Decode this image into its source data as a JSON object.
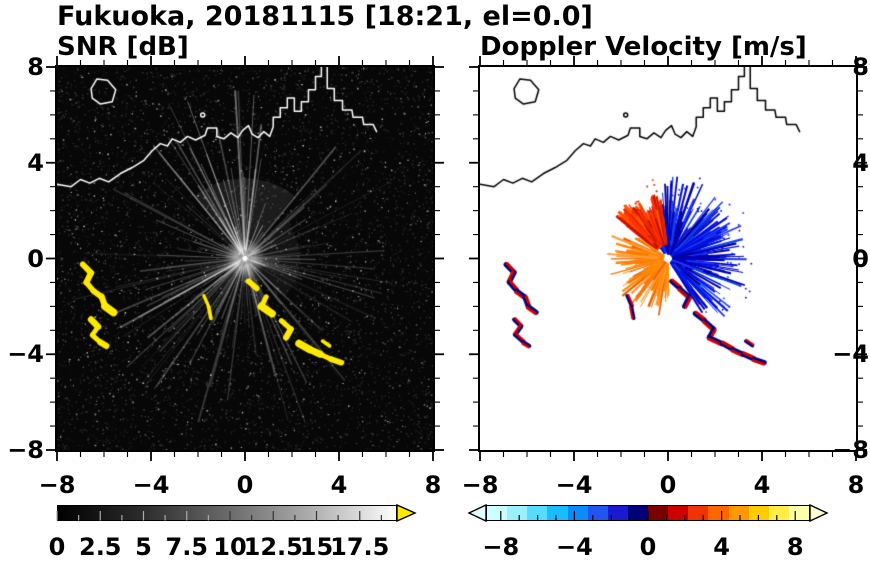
{
  "title": "Fukuoka, 20181115 [18:21, el=0.0]",
  "header": {
    "station": "Fukuoka",
    "date": "20181115",
    "time": "18:21",
    "elevation_deg": "0.0"
  },
  "chart_data": [
    {
      "type": "heatmap",
      "title": "SNR [dB]",
      "xlim": [
        -8,
        8
      ],
      "ylim": [
        -8,
        8
      ],
      "xtick_values": [
        -8,
        -4,
        0,
        4,
        8
      ],
      "xtick_labels": [
        "−8",
        "−4",
        "0",
        "4",
        "8"
      ],
      "ytick_values": [
        8,
        4,
        0,
        -4,
        -8
      ],
      "ytick_labels": [
        "8",
        "4",
        "0",
        "−4",
        "−8"
      ],
      "background": "#070707",
      "coast_color": "#ffffff",
      "echo_color": "#ffe900",
      "streak_color": "#ffffff",
      "colorbar": {
        "min": 0,
        "max": 19.5,
        "ticks": [
          0,
          2.5,
          5,
          7.5,
          10,
          12.5,
          15,
          17.5
        ],
        "labels": [
          "0",
          "2.5",
          "5",
          "7.5",
          "10",
          "12.5",
          "15",
          "17.5"
        ],
        "start_color": "#000000",
        "end_color": "#ffffff",
        "over_arrow_color": "#ffe900"
      },
      "description": "Radar SNR field: dark speckle-noise background, white radial beam streaks from the radar at (0,0), bright core, and yellow high-SNR echo patches (west arcs and a broken southeast chain)."
    },
    {
      "type": "heatmap",
      "title": "Doppler Velocity [m/s]",
      "xlim": [
        -8,
        8
      ],
      "ylim": [
        -8,
        8
      ],
      "xtick_values": [
        -8,
        -4,
        0,
        4,
        8
      ],
      "xtick_labels": [
        "−8",
        "−4",
        "0",
        "4",
        "8"
      ],
      "ytick_values": [
        8,
        4,
        0,
        -4,
        -8
      ],
      "ytick_labels": [
        "8",
        "4",
        "0",
        "−4",
        "−8"
      ],
      "background": "#ffffff",
      "coast_color": "#000000",
      "colorbar": {
        "min": -8.8,
        "max": 8.8,
        "ticks": [
          -8,
          -4,
          0,
          4,
          8
        ],
        "labels": [
          "−8",
          "−4",
          "0",
          "4",
          "8"
        ],
        "segment_colors": [
          "#ccffff",
          "#99f0ff",
          "#55dcff",
          "#18bdff",
          "#0a8cff",
          "#2255f0",
          "#1a1ad0",
          "#000078",
          "#7a0000",
          "#cc0000",
          "#f03300",
          "#ff6600",
          "#ff9900",
          "#ffcc00",
          "#ffee44",
          "#ffffaa"
        ],
        "under_arrow_color": "#e0ffff",
        "over_arrow_color": "#ffffd2"
      },
      "description": "Doppler velocity field: dense blue spike fan east/northeast of the radar, compact red blob northwest, orange spikes west-southwest, white gap at radar location, and mixed navy/red echo patches matching the SNR echoes."
    }
  ],
  "features": {
    "radar_center_km": [
      0,
      0
    ],
    "coastline_km": [
      [
        -8,
        3.1
      ],
      [
        -7.4,
        3.0
      ],
      [
        -7.0,
        3.3
      ],
      [
        -6.6,
        3.15
      ],
      [
        -6.2,
        3.35
      ],
      [
        -5.8,
        3.2
      ],
      [
        -5.3,
        3.55
      ],
      [
        -4.8,
        3.8
      ],
      [
        -4.3,
        4.1
      ],
      [
        -3.95,
        4.5
      ],
      [
        -3.6,
        4.8
      ],
      [
        -3.3,
        4.7
      ],
      [
        -3.1,
        5.0
      ],
      [
        -2.75,
        4.85
      ],
      [
        -2.45,
        5.1
      ],
      [
        -2.1,
        4.95
      ],
      [
        -1.7,
        5.15
      ],
      [
        -1.6,
        5.45
      ],
      [
        -1.2,
        5.45
      ],
      [
        -1.2,
        5.1
      ],
      [
        -0.9,
        5.0
      ],
      [
        -0.6,
        5.25
      ],
      [
        -0.3,
        5.05
      ],
      [
        -0.1,
        5.35
      ],
      [
        0.15,
        5.55
      ],
      [
        0.3,
        5.2
      ],
      [
        0.55,
        5.05
      ],
      [
        0.8,
        5.3
      ],
      [
        1.05,
        5.1
      ],
      [
        1.2,
        5.5
      ],
      [
        1.2,
        5.9
      ],
      [
        1.5,
        5.9
      ],
      [
        1.5,
        6.3
      ],
      [
        1.8,
        6.3
      ],
      [
        1.8,
        6.7
      ],
      [
        2.1,
        6.7
      ],
      [
        2.1,
        6.15
      ],
      [
        2.4,
        6.15
      ],
      [
        2.4,
        6.55
      ],
      [
        2.7,
        6.55
      ],
      [
        2.7,
        7.05
      ],
      [
        3.0,
        7.05
      ],
      [
        3.0,
        7.6
      ],
      [
        3.25,
        7.6
      ],
      [
        3.25,
        8.1
      ],
      [
        3.5,
        8.1
      ],
      [
        3.5,
        7.1
      ],
      [
        3.8,
        7.1
      ],
      [
        3.8,
        6.6
      ],
      [
        4.15,
        6.6
      ],
      [
        4.15,
        6.2
      ],
      [
        4.55,
        6.2
      ],
      [
        4.6,
        5.9
      ],
      [
        5.0,
        5.9
      ],
      [
        5.05,
        5.6
      ],
      [
        5.45,
        5.6
      ],
      [
        5.6,
        5.3
      ]
    ],
    "island_km": [
      [
        -6.55,
        7.1
      ],
      [
        -6.3,
        7.5
      ],
      [
        -5.85,
        7.45
      ],
      [
        -5.5,
        7.05
      ],
      [
        -5.65,
        6.55
      ],
      [
        -6.15,
        6.45
      ],
      [
        -6.5,
        6.7
      ]
    ],
    "islet_km": [
      -1.8,
      6.0
    ],
    "echoes_km": [
      {
        "name": "west-arc-echo",
        "points": [
          [
            -6.9,
            -0.25
          ],
          [
            -6.55,
            -0.6
          ],
          [
            -6.75,
            -1.0
          ],
          [
            -6.45,
            -1.35
          ],
          [
            -6.1,
            -1.6
          ],
          [
            -5.95,
            -2.0
          ],
          [
            -5.6,
            -2.25
          ]
        ],
        "width": 6,
        "broken": false
      },
      {
        "name": "west-arc-echo-2",
        "points": [
          [
            -6.55,
            -2.55
          ],
          [
            -6.25,
            -2.85
          ],
          [
            -6.5,
            -3.2
          ],
          [
            -6.15,
            -3.5
          ],
          [
            -5.9,
            -3.65
          ]
        ],
        "width": 5,
        "broken": false
      },
      {
        "name": "inner-echo",
        "points": [
          [
            -1.75,
            -1.55
          ],
          [
            -1.55,
            -2.0
          ],
          [
            -1.45,
            -2.5
          ]
        ],
        "width": 4,
        "broken": false
      },
      {
        "name": "southeast-chain-echo",
        "points": [
          [
            0.15,
            -0.95
          ],
          [
            0.5,
            -1.25
          ],
          [
            0.9,
            -1.6
          ],
          [
            0.7,
            -2.0
          ],
          [
            1.15,
            -2.3
          ],
          [
            1.55,
            -2.6
          ],
          [
            1.95,
            -2.95
          ],
          [
            1.75,
            -3.3
          ],
          [
            2.3,
            -3.55
          ],
          [
            2.75,
            -3.8
          ],
          [
            3.2,
            -4.0
          ],
          [
            3.65,
            -4.2
          ],
          [
            4.1,
            -4.35
          ]
        ],
        "width": 6,
        "broken": true
      },
      {
        "name": "southeast-speck-echo",
        "points": [
          [
            3.3,
            -3.45
          ],
          [
            3.6,
            -3.65
          ]
        ],
        "width": 4,
        "broken": false
      }
    ],
    "doppler_fan_colors": {
      "blue": [
        "#0000bb",
        "#0011e6",
        "#2233ff",
        "#000099",
        "#1144ee"
      ],
      "red": [
        "#ff3300",
        "#e62200",
        "#ff5500",
        "#cc1100"
      ],
      "orange": [
        "#ff7700",
        "#ff8c00",
        "#e66500",
        "#ff9933"
      ]
    },
    "doppler_echo_colors": {
      "navy": "#000080",
      "red": "#d40000"
    }
  }
}
